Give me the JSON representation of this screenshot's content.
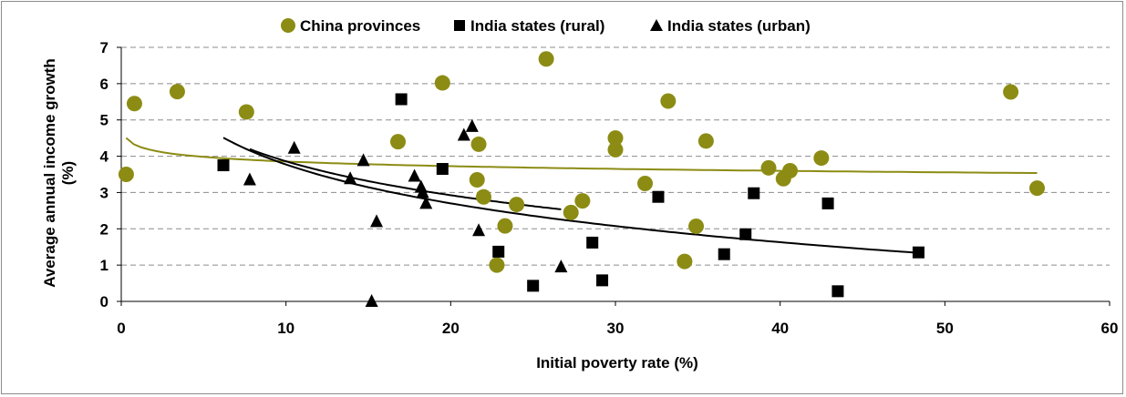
{
  "chart_data": {
    "type": "scatter",
    "xlabel": "Initial poverty rate (%)",
    "ylabel_line1": "Average annual income growth",
    "ylabel_line2": "(%)",
    "xlim": [
      0,
      60
    ],
    "ylim": [
      0,
      7
    ],
    "xticks": [
      0,
      10,
      20,
      30,
      40,
      50,
      60
    ],
    "yticks": [
      0,
      1,
      2,
      3,
      4,
      5,
      6,
      7
    ],
    "grid": "horizontal dashed",
    "legend_position": "top",
    "series": [
      {
        "name": "China provinces",
        "marker": "circle",
        "color": "#8c8c14",
        "points": [
          [
            0.3,
            3.5
          ],
          [
            0.8,
            5.45
          ],
          [
            3.4,
            5.78
          ],
          [
            7.6,
            5.22
          ],
          [
            16.8,
            4.4
          ],
          [
            19.5,
            6.02
          ],
          [
            21.7,
            4.33
          ],
          [
            21.6,
            3.35
          ],
          [
            22.0,
            2.88
          ],
          [
            24.0,
            2.67
          ],
          [
            23.3,
            2.08
          ],
          [
            22.8,
            1.0
          ],
          [
            25.8,
            6.68
          ],
          [
            27.3,
            2.45
          ],
          [
            28.0,
            2.77
          ],
          [
            30.0,
            4.5
          ],
          [
            30.0,
            4.18
          ],
          [
            31.8,
            3.25
          ],
          [
            33.2,
            5.52
          ],
          [
            34.2,
            1.1
          ],
          [
            34.9,
            2.07
          ],
          [
            35.5,
            4.42
          ],
          [
            39.3,
            3.68
          ],
          [
            40.2,
            3.38
          ],
          [
            40.6,
            3.6
          ],
          [
            42.5,
            3.95
          ],
          [
            54.0,
            5.77
          ],
          [
            55.6,
            3.12
          ]
        ]
      },
      {
        "name": "India states (rural)",
        "marker": "square",
        "color": "#000000",
        "points": [
          [
            6.2,
            3.75
          ],
          [
            17.0,
            5.57
          ],
          [
            19.5,
            3.65
          ],
          [
            22.9,
            1.37
          ],
          [
            25.0,
            0.43
          ],
          [
            28.6,
            1.62
          ],
          [
            29.2,
            0.58
          ],
          [
            32.6,
            2.88
          ],
          [
            36.6,
            1.3
          ],
          [
            37.9,
            1.85
          ],
          [
            38.4,
            2.98
          ],
          [
            42.9,
            2.7
          ],
          [
            43.5,
            0.28
          ],
          [
            48.4,
            1.35
          ]
        ]
      },
      {
        "name": "India states (urban)",
        "marker": "triangle",
        "color": "#000000",
        "points": [
          [
            7.8,
            3.35
          ],
          [
            10.5,
            4.22
          ],
          [
            13.9,
            3.38
          ],
          [
            14.7,
            3.88
          ],
          [
            15.2,
            0.0
          ],
          [
            15.5,
            2.2
          ],
          [
            17.8,
            3.45
          ],
          [
            18.2,
            3.15
          ],
          [
            18.3,
            3.0
          ],
          [
            18.5,
            2.7
          ],
          [
            20.8,
            4.58
          ],
          [
            21.3,
            4.82
          ],
          [
            21.7,
            1.95
          ],
          [
            26.7,
            0.95
          ]
        ]
      }
    ],
    "trendlines": [
      {
        "series": "China provinces",
        "kind": "log",
        "color": "#8c8c14",
        "x_range": [
          0.3,
          55.6
        ],
        "a": 4.28,
        "b": -0.185
      },
      {
        "series": "India states (rural)",
        "kind": "log",
        "color": "#000000",
        "x_range": [
          6.2,
          48.4
        ],
        "a": 7.33,
        "b": -1.545
      },
      {
        "series": "India states (urban)",
        "kind": "log",
        "color": "#000000",
        "x_range": [
          7.8,
          26.7
        ],
        "a": 6.97,
        "b": -1.35
      }
    ]
  }
}
